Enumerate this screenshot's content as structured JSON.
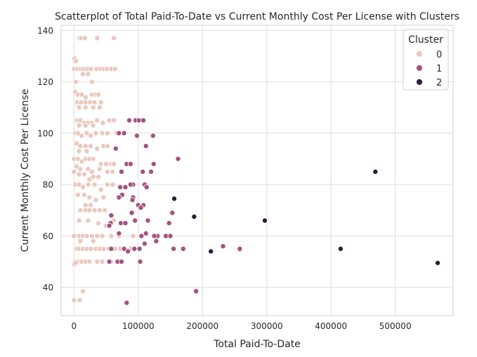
{
  "chart_data": {
    "type": "scatter",
    "title": "Scatterplot of Total Paid-To-Date vs Current Monthly Cost Per License with Clusters",
    "xlabel": "Total Paid-To-Date",
    "ylabel": "Current Monthly Cost Per License",
    "xlim": [
      -20000,
      590000
    ],
    "ylim": [
      29,
      142
    ],
    "xticks": [
      0,
      100000,
      200000,
      300000,
      400000,
      500000
    ],
    "xtick_labels": [
      "0",
      "100000",
      "200000",
      "300000",
      "400000",
      "500000"
    ],
    "yticks": [
      40,
      60,
      80,
      100,
      120,
      140
    ],
    "ytick_labels": [
      "40",
      "60",
      "80",
      "100",
      "120",
      "140"
    ],
    "grid": true,
    "legend": {
      "title": "Cluster",
      "placement": "top-right",
      "entries": [
        "0",
        "1",
        "2"
      ]
    },
    "colors": {
      "0": "#ebc8bd",
      "1": "#a2537f",
      "2": "#2c1a3f"
    },
    "series": [
      {
        "name": "0",
        "points": [
          [
            1000,
            129
          ],
          [
            3000,
            128
          ],
          [
            9000,
            137
          ],
          [
            12000,
            137
          ],
          [
            17000,
            137
          ],
          [
            36000,
            137
          ],
          [
            62000,
            137
          ],
          [
            0,
            125
          ],
          [
            5000,
            125
          ],
          [
            10000,
            125
          ],
          [
            14000,
            125
          ],
          [
            18000,
            125
          ],
          [
            22000,
            125
          ],
          [
            26000,
            125
          ],
          [
            35000,
            125
          ],
          [
            41000,
            125
          ],
          [
            46000,
            125
          ],
          [
            51000,
            125
          ],
          [
            58000,
            125
          ],
          [
            64000,
            125
          ],
          [
            14000,
            123
          ],
          [
            22000,
            123
          ],
          [
            3000,
            120
          ],
          [
            28000,
            120
          ],
          [
            2000,
            116
          ],
          [
            6000,
            115
          ],
          [
            12000,
            115
          ],
          [
            18000,
            114
          ],
          [
            28000,
            115
          ],
          [
            34000,
            115
          ],
          [
            38000,
            115
          ],
          [
            5000,
            112
          ],
          [
            11000,
            112
          ],
          [
            18000,
            112
          ],
          [
            25000,
            112
          ],
          [
            32000,
            112
          ],
          [
            42000,
            112
          ],
          [
            8000,
            110
          ],
          [
            18000,
            110
          ],
          [
            30000,
            110
          ],
          [
            40000,
            110
          ],
          [
            5000,
            105
          ],
          [
            10000,
            105
          ],
          [
            16000,
            104
          ],
          [
            22000,
            104
          ],
          [
            28000,
            104
          ],
          [
            36000,
            105
          ],
          [
            45000,
            104
          ],
          [
            55000,
            105
          ],
          [
            62000,
            105
          ],
          [
            8000,
            103
          ],
          [
            18000,
            103
          ],
          [
            30000,
            103
          ],
          [
            2000,
            100
          ],
          [
            6000,
            100
          ],
          [
            12000,
            99
          ],
          [
            20000,
            100
          ],
          [
            26000,
            99
          ],
          [
            34000,
            100
          ],
          [
            44000,
            100
          ],
          [
            52000,
            100
          ],
          [
            66000,
            100
          ],
          [
            4000,
            96
          ],
          [
            10000,
            95
          ],
          [
            18000,
            95
          ],
          [
            26000,
            95
          ],
          [
            36000,
            94
          ],
          [
            46000,
            95
          ],
          [
            52000,
            95
          ],
          [
            64000,
            94
          ],
          [
            8000,
            93
          ],
          [
            20000,
            93
          ],
          [
            0,
            90
          ],
          [
            6000,
            90
          ],
          [
            12000,
            89
          ],
          [
            18000,
            90
          ],
          [
            24000,
            90
          ],
          [
            30000,
            90
          ],
          [
            42000,
            88
          ],
          [
            50000,
            88
          ],
          [
            58000,
            88
          ],
          [
            62000,
            88
          ],
          [
            4000,
            87
          ],
          [
            10000,
            86
          ],
          [
            22000,
            86
          ],
          [
            28000,
            85
          ],
          [
            40000,
            86
          ],
          [
            52000,
            85
          ],
          [
            60000,
            85
          ],
          [
            0,
            85
          ],
          [
            8000,
            84
          ],
          [
            16000,
            84
          ],
          [
            24000,
            82
          ],
          [
            30000,
            83
          ],
          [
            38000,
            83
          ],
          [
            2000,
            80
          ],
          [
            8000,
            80
          ],
          [
            14000,
            79
          ],
          [
            22000,
            80
          ],
          [
            32000,
            80
          ],
          [
            42000,
            78
          ],
          [
            52000,
            80
          ],
          [
            60000,
            80
          ],
          [
            6000,
            76
          ],
          [
            16000,
            76
          ],
          [
            24000,
            75
          ],
          [
            34000,
            74
          ],
          [
            46000,
            75
          ],
          [
            18000,
            72
          ],
          [
            26000,
            72
          ],
          [
            10000,
            70
          ],
          [
            18000,
            70
          ],
          [
            24000,
            70
          ],
          [
            32000,
            70
          ],
          [
            40000,
            70
          ],
          [
            48000,
            70
          ],
          [
            60000,
            68
          ],
          [
            8000,
            66
          ],
          [
            22000,
            66
          ],
          [
            38000,
            65
          ],
          [
            50000,
            64
          ],
          [
            62000,
            66
          ],
          [
            0,
            60
          ],
          [
            8000,
            60
          ],
          [
            14000,
            60
          ],
          [
            20000,
            60
          ],
          [
            28000,
            60
          ],
          [
            36000,
            60
          ],
          [
            44000,
            60
          ],
          [
            58000,
            60
          ],
          [
            70000,
            60
          ],
          [
            92000,
            60
          ],
          [
            10000,
            58
          ],
          [
            30000,
            58
          ],
          [
            4000,
            55
          ],
          [
            8000,
            55
          ],
          [
            14000,
            55
          ],
          [
            20000,
            55
          ],
          [
            26000,
            55
          ],
          [
            34000,
            55
          ],
          [
            40000,
            55
          ],
          [
            46000,
            55
          ],
          [
            54000,
            55
          ],
          [
            58000,
            55
          ],
          [
            64000,
            55
          ],
          [
            72000,
            55
          ],
          [
            88000,
            55
          ],
          [
            258000,
            54.5
          ],
          [
            2000,
            50
          ],
          [
            6000,
            50
          ],
          [
            12000,
            50
          ],
          [
            18000,
            50
          ],
          [
            24000,
            50
          ],
          [
            36000,
            50
          ],
          [
            44000,
            50
          ],
          [
            58000,
            50
          ],
          [
            66000,
            50
          ],
          [
            0,
            49
          ],
          [
            3000,
            49.5
          ],
          [
            14000,
            38.5
          ],
          [
            0,
            35
          ],
          [
            9000,
            35
          ]
        ]
      },
      {
        "name": "1",
        "points": [
          [
            86000,
            105
          ],
          [
            96000,
            105
          ],
          [
            101000,
            105
          ],
          [
            108000,
            105
          ],
          [
            70000,
            100
          ],
          [
            78000,
            100
          ],
          [
            98000,
            99
          ],
          [
            123000,
            99
          ],
          [
            112000,
            95
          ],
          [
            65000,
            94
          ],
          [
            162000,
            90
          ],
          [
            82000,
            88
          ],
          [
            88000,
            88
          ],
          [
            124000,
            88
          ],
          [
            74000,
            85
          ],
          [
            120000,
            85
          ],
          [
            107000,
            85
          ],
          [
            92000,
            80
          ],
          [
            88000,
            80
          ],
          [
            72000,
            79
          ],
          [
            80000,
            79
          ],
          [
            110000,
            80
          ],
          [
            113000,
            79
          ],
          [
            75000,
            76
          ],
          [
            70000,
            75
          ],
          [
            92000,
            75
          ],
          [
            91000,
            74
          ],
          [
            100000,
            72
          ],
          [
            108000,
            72
          ],
          [
            104000,
            71
          ],
          [
            58000,
            68
          ],
          [
            153000,
            69
          ],
          [
            90000,
            69
          ],
          [
            73000,
            65
          ],
          [
            80000,
            65
          ],
          [
            57000,
            65
          ],
          [
            55000,
            64
          ],
          [
            95000,
            66
          ],
          [
            115000,
            66
          ],
          [
            148000,
            65
          ],
          [
            70000,
            61
          ],
          [
            112000,
            61
          ],
          [
            105000,
            60
          ],
          [
            130000,
            60
          ],
          [
            143000,
            60
          ],
          [
            150000,
            60
          ],
          [
            125000,
            60
          ],
          [
            128000,
            58
          ],
          [
            110000,
            57
          ],
          [
            58000,
            55
          ],
          [
            78000,
            55
          ],
          [
            94000,
            55
          ],
          [
            102000,
            55
          ],
          [
            155000,
            55
          ],
          [
            170000,
            55
          ],
          [
            258000,
            55
          ],
          [
            232000,
            56
          ],
          [
            84000,
            54
          ],
          [
            55000,
            50
          ],
          [
            68000,
            50
          ],
          [
            74000,
            50
          ],
          [
            103000,
            50
          ],
          [
            190000,
            38.5
          ],
          [
            82000,
            34
          ]
        ]
      },
      {
        "name": "2",
        "points": [
          [
            156000,
            74.5
          ],
          [
            187000,
            67.5
          ],
          [
            297000,
            66
          ],
          [
            213000,
            54
          ],
          [
            415000,
            55
          ],
          [
            469000,
            85
          ],
          [
            566000,
            49.5
          ]
        ]
      }
    ]
  }
}
